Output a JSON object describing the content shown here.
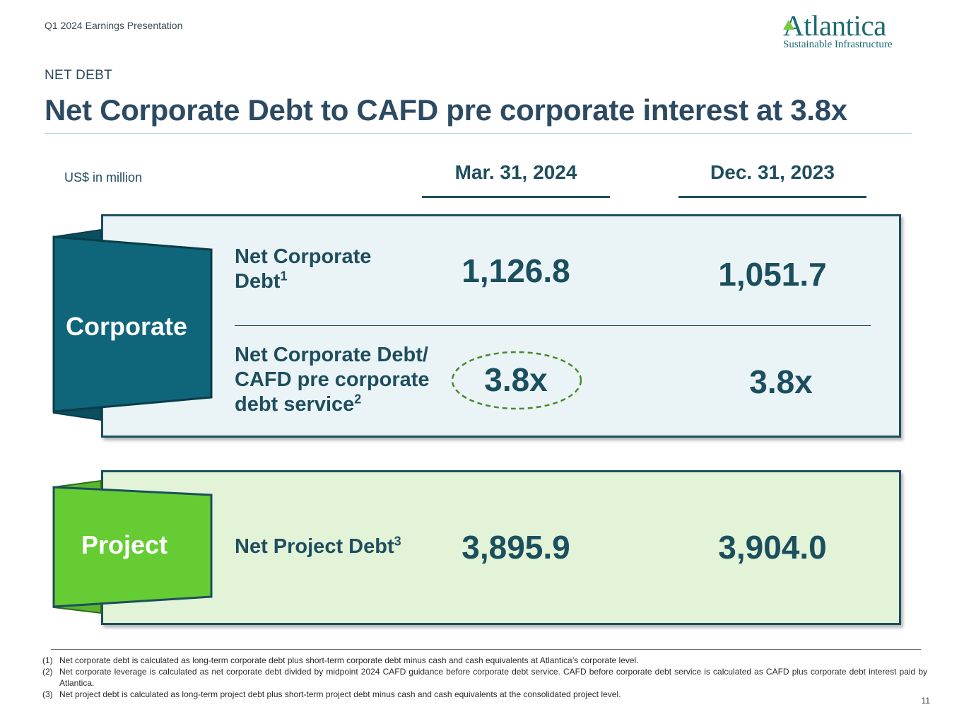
{
  "header": {
    "presentation_label": "Q1 2024 Earnings Presentation",
    "logo_name": "Atlantica",
    "logo_tagline": "Sustainable Infrastructure"
  },
  "section_label": "NET DEBT",
  "title": "Net Corporate Debt to CAFD pre corporate interest at 3.8x",
  "units": "US$ in million",
  "columns": [
    "Mar. 31, 2024",
    "Dec. 31, 2023"
  ],
  "corporate": {
    "tab_label": "Corporate",
    "rows": [
      {
        "label_lines": [
          "Net Corporate",
          "Debt"
        ],
        "sup": "1",
        "values": [
          "1,126.8",
          "1,051.7"
        ]
      },
      {
        "label_lines": [
          "Net Corporate Debt/",
          "CAFD pre corporate",
          "debt service"
        ],
        "sup": "2",
        "values": [
          "3.8x",
          "3.8x"
        ]
      }
    ]
  },
  "project": {
    "tab_label": "Project",
    "rows": [
      {
        "label_lines": [
          "Net Project Debt"
        ],
        "sup": "3",
        "values": [
          "3,895.9",
          "3,904.0"
        ]
      }
    ]
  },
  "footnotes": [
    {
      "num": "(1)",
      "text": "Net corporate debt is calculated as long-term corporate debt plus short-term corporate debt minus cash and cash equivalents at Atlantica’s corporate level."
    },
    {
      "num": "(2)",
      "text": "Net corporate leverage is calculated as net corporate debt divided by midpoint 2024 CAFD guidance before corporate debt service. CAFD before corporate debt service is calculated as CAFD plus corporate debt interest paid by Atlantica."
    },
    {
      "num": "(3)",
      "text": "Net project debt is calculated as long-term project debt plus short-term project debt minus cash and cash equivalents at the consolidated project level."
    }
  ],
  "page_number": "11",
  "colors": {
    "corporate_tab": "#0f6579",
    "project_tab": "#66cc33",
    "highlight_circle": "#4a8a2a",
    "text_dark_teal": "#1f4e5e"
  }
}
